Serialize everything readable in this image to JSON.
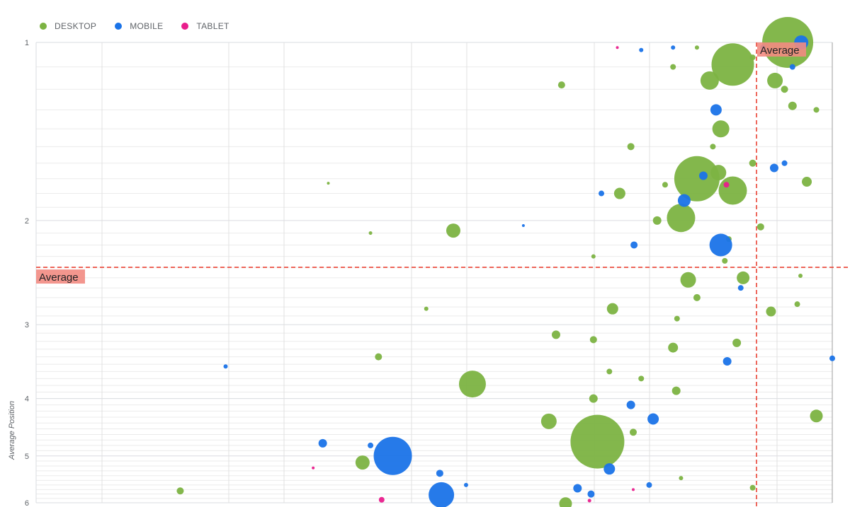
{
  "chart_data": {
    "type": "scatter",
    "title": "",
    "xlabel": "",
    "ylabel": "Average Position",
    "y_scale": "log",
    "y_reversed": true,
    "ylim": [
      1,
      6
    ],
    "x_tick_labels": [],
    "y_tick_labels": [
      "1",
      "2",
      "3",
      "4",
      "5",
      "6"
    ],
    "grid": true,
    "legend_position": "top-left",
    "reference_lines": [
      {
        "axis": "y",
        "value": 2.4,
        "label": "Average",
        "color": "#ea4335"
      },
      {
        "axis": "x",
        "label": "Average",
        "color": "#ea4335"
      }
    ],
    "series": [
      {
        "name": "DESKTOP",
        "color": "#7cb342",
        "points": [
          {
            "x": 0.944,
            "y": 1.0,
            "size": 36
          },
          {
            "x": 0.875,
            "y": 1.09,
            "size": 30
          },
          {
            "x": 0.83,
            "y": 1.7,
            "size": 32
          },
          {
            "x": 0.875,
            "y": 1.78,
            "size": 20
          },
          {
            "x": 0.81,
            "y": 1.98,
            "size": 20
          },
          {
            "x": 0.705,
            "y": 4.73,
            "size": 38
          },
          {
            "x": 0.548,
            "y": 3.78,
            "size": 19
          },
          {
            "x": 0.524,
            "y": 2.08,
            "size": 10
          },
          {
            "x": 0.846,
            "y": 1.16,
            "size": 13
          },
          {
            "x": 0.86,
            "y": 1.4,
            "size": 12
          },
          {
            "x": 0.928,
            "y": 1.16,
            "size": 11
          },
          {
            "x": 0.724,
            "y": 2.82,
            "size": 8
          },
          {
            "x": 0.644,
            "y": 4.37,
            "size": 11
          },
          {
            "x": 0.41,
            "y": 5.13,
            "size": 10
          },
          {
            "x": 0.857,
            "y": 1.66,
            "size": 11
          },
          {
            "x": 0.819,
            "y": 2.52,
            "size": 11
          },
          {
            "x": 0.98,
            "y": 4.28,
            "size": 9
          },
          {
            "x": 0.888,
            "y": 2.5,
            "size": 9
          },
          {
            "x": 0.733,
            "y": 1.8,
            "size": 8
          },
          {
            "x": 0.923,
            "y": 2.85,
            "size": 7
          },
          {
            "x": 0.968,
            "y": 1.72,
            "size": 7
          },
          {
            "x": 0.78,
            "y": 2.0,
            "size": 6
          },
          {
            "x": 0.66,
            "y": 1.18,
            "size": 5
          },
          {
            "x": 0.181,
            "y": 5.73,
            "size": 5
          },
          {
            "x": 0.43,
            "y": 3.4,
            "size": 5
          },
          {
            "x": 0.49,
            "y": 2.82,
            "size": 3
          },
          {
            "x": 0.367,
            "y": 1.73,
            "size": 2
          },
          {
            "x": 0.42,
            "y": 2.1,
            "size": 2.5
          },
          {
            "x": 0.653,
            "y": 3.12,
            "size": 6
          },
          {
            "x": 0.747,
            "y": 1.5,
            "size": 5
          },
          {
            "x": 0.8,
            "y": 3.28,
            "size": 7
          },
          {
            "x": 0.88,
            "y": 3.22,
            "size": 6
          },
          {
            "x": 0.804,
            "y": 3.88,
            "size": 6
          },
          {
            "x": 0.7,
            "y": 3.18,
            "size": 5
          },
          {
            "x": 0.665,
            "y": 6.02,
            "size": 9
          },
          {
            "x": 0.9,
            "y": 5.66,
            "size": 4
          },
          {
            "x": 0.956,
            "y": 2.77,
            "size": 4
          },
          {
            "x": 0.98,
            "y": 1.3,
            "size": 4
          },
          {
            "x": 0.91,
            "y": 2.05,
            "size": 5
          },
          {
            "x": 0.865,
            "y": 2.34,
            "size": 4
          },
          {
            "x": 0.75,
            "y": 4.56,
            "size": 5
          },
          {
            "x": 0.83,
            "y": 2.7,
            "size": 5
          },
          {
            "x": 0.7,
            "y": 4.0,
            "size": 6
          },
          {
            "x": 0.95,
            "y": 1.28,
            "size": 6
          },
          {
            "x": 0.94,
            "y": 1.2,
            "size": 5
          },
          {
            "x": 0.9,
            "y": 1.6,
            "size": 5
          },
          {
            "x": 0.87,
            "y": 2.15,
            "size": 4
          },
          {
            "x": 0.79,
            "y": 1.74,
            "size": 4
          },
          {
            "x": 0.85,
            "y": 1.5,
            "size": 4
          },
          {
            "x": 0.72,
            "y": 3.6,
            "size": 4
          },
          {
            "x": 0.805,
            "y": 2.93,
            "size": 4
          },
          {
            "x": 0.76,
            "y": 3.7,
            "size": 4
          },
          {
            "x": 0.81,
            "y": 5.45,
            "size": 3
          },
          {
            "x": 0.96,
            "y": 2.48,
            "size": 3
          },
          {
            "x": 0.7,
            "y": 2.3,
            "size": 3
          },
          {
            "x": 0.9,
            "y": 1.06,
            "size": 4
          },
          {
            "x": 0.83,
            "y": 1.02,
            "size": 3
          },
          {
            "x": 0.8,
            "y": 1.1,
            "size": 4
          }
        ]
      },
      {
        "name": "MOBILE",
        "color": "#1a73e8",
        "points": [
          {
            "x": 0.448,
            "y": 5.0,
            "size": 27
          },
          {
            "x": 0.509,
            "y": 5.82,
            "size": 18
          },
          {
            "x": 0.86,
            "y": 2.2,
            "size": 16
          },
          {
            "x": 0.961,
            "y": 1.0,
            "size": 10
          },
          {
            "x": 0.814,
            "y": 1.85,
            "size": 9
          },
          {
            "x": 0.854,
            "y": 1.3,
            "size": 8
          },
          {
            "x": 0.775,
            "y": 4.33,
            "size": 8
          },
          {
            "x": 0.72,
            "y": 5.26,
            "size": 8
          },
          {
            "x": 0.838,
            "y": 1.68,
            "size": 6
          },
          {
            "x": 0.927,
            "y": 1.63,
            "size": 6
          },
          {
            "x": 0.747,
            "y": 4.1,
            "size": 6
          },
          {
            "x": 0.36,
            "y": 4.76,
            "size": 6
          },
          {
            "x": 0.68,
            "y": 5.67,
            "size": 6
          },
          {
            "x": 0.868,
            "y": 3.46,
            "size": 6
          },
          {
            "x": 0.507,
            "y": 5.35,
            "size": 5
          },
          {
            "x": 0.751,
            "y": 2.2,
            "size": 5
          },
          {
            "x": 0.238,
            "y": 3.53,
            "size": 3
          },
          {
            "x": 1.0,
            "y": 3.42,
            "size": 4
          },
          {
            "x": 0.885,
            "y": 2.6,
            "size": 4
          },
          {
            "x": 0.71,
            "y": 1.8,
            "size": 4
          },
          {
            "x": 0.94,
            "y": 1.6,
            "size": 4
          },
          {
            "x": 0.8,
            "y": 1.02,
            "size": 3
          },
          {
            "x": 0.76,
            "y": 1.03,
            "size": 3
          },
          {
            "x": 0.95,
            "y": 1.1,
            "size": 4
          },
          {
            "x": 0.913,
            "y": 1.02,
            "size": 4
          },
          {
            "x": 0.697,
            "y": 5.8,
            "size": 5
          },
          {
            "x": 0.77,
            "y": 5.6,
            "size": 4
          },
          {
            "x": 0.54,
            "y": 5.6,
            "size": 3
          },
          {
            "x": 0.612,
            "y": 2.04,
            "size": 2
          },
          {
            "x": 0.42,
            "y": 4.8,
            "size": 4
          }
        ]
      },
      {
        "name": "TABLET",
        "color": "#e91e8c",
        "points": [
          {
            "x": 0.867,
            "y": 1.74,
            "size": 4
          },
          {
            "x": 0.434,
            "y": 5.93,
            "size": 4
          },
          {
            "x": 0.73,
            "y": 1.02,
            "size": 2
          },
          {
            "x": 0.348,
            "y": 5.24,
            "size": 2
          },
          {
            "x": 0.695,
            "y": 5.95,
            "size": 2.5
          },
          {
            "x": 0.75,
            "y": 5.7,
            "size": 2
          }
        ]
      }
    ]
  },
  "reference_lines": {
    "y_label": "Average",
    "x_label": "Average"
  }
}
